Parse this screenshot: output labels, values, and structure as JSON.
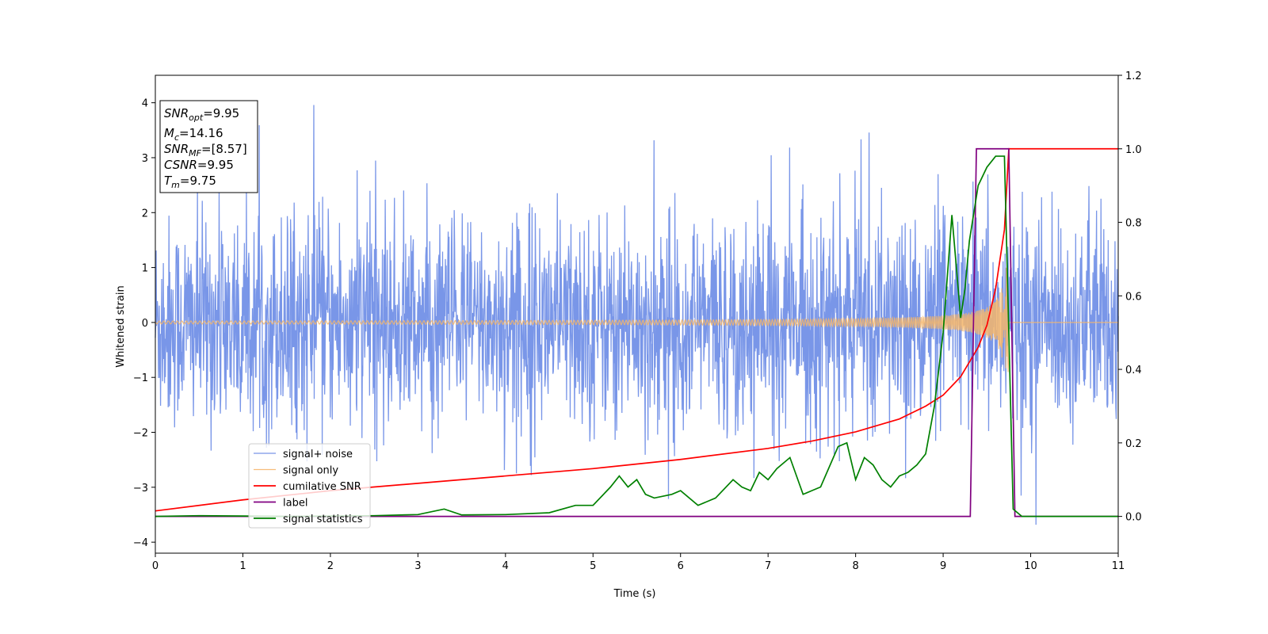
{
  "chart_data": {
    "type": "line",
    "xlabel": "Time (s)",
    "ylabel": "Whitened strain",
    "xlim": [
      0,
      11
    ],
    "ylim_left": [
      -4.2,
      4.5
    ],
    "ylim_right": [
      -0.1,
      1.2
    ],
    "x_ticks": [
      "0",
      "1",
      "2",
      "3",
      "4",
      "5",
      "6",
      "7",
      "8",
      "9",
      "10",
      "11"
    ],
    "y_ticks_left": [
      "−4",
      "−3",
      "−2",
      "−1",
      "0",
      "1",
      "2",
      "3",
      "4"
    ],
    "y_tick_values_left": [
      -4,
      -3,
      -2,
      -1,
      0,
      1,
      2,
      3,
      4
    ],
    "y_ticks_right": [
      "0.0",
      "0.2",
      "0.4",
      "0.6",
      "0.8",
      "1.0",
      "1.2"
    ],
    "y_tick_values_right": [
      0.0,
      0.2,
      0.4,
      0.6,
      0.8,
      1.0,
      1.2
    ],
    "grid": false,
    "legend_position": "lower-left",
    "info_box": {
      "lines": [
        {
          "main": "SNR",
          "sub": "opt",
          "rest": "=9.95"
        },
        {
          "main": "M",
          "sub": "c",
          "rest": "=14.16"
        },
        {
          "main": "SNR",
          "sub": "MF",
          "rest": "=[8.57]"
        },
        {
          "main": "CSNR",
          "sub": "",
          "rest": "=9.95"
        },
        {
          "main": "T",
          "sub": "m",
          "rest": "=9.75"
        }
      ]
    },
    "series": [
      {
        "name": "signal+ noise",
        "axis": "left",
        "color": "#6a8be6",
        "description_kind": "noise",
        "noise_sigma": 0.95,
        "x_range": [
          0,
          11
        ]
      },
      {
        "name": "signal only",
        "axis": "left",
        "color": "#f5b66b",
        "description_kind": "chirp",
        "merger_time": 9.75,
        "peak_amplitude": 1.0,
        "x_range": [
          0,
          11
        ]
      },
      {
        "name": "cumilative SNR",
        "axis": "right",
        "color": "#ff0000",
        "x": [
          0,
          1,
          2,
          3,
          4,
          5,
          6,
          7,
          7.5,
          8,
          8.5,
          8.8,
          9.0,
          9.2,
          9.4,
          9.5,
          9.6,
          9.7,
          9.75,
          11
        ],
        "y": [
          0.015,
          0.045,
          0.07,
          0.09,
          0.11,
          0.13,
          0.155,
          0.185,
          0.205,
          0.23,
          0.265,
          0.3,
          0.33,
          0.38,
          0.46,
          0.52,
          0.62,
          0.78,
          1.0,
          1.0
        ]
      },
      {
        "name": "label",
        "axis": "right",
        "color": "#800080",
        "x": [
          0,
          9.31,
          9.38,
          9.75,
          9.82,
          11
        ],
        "y": [
          0,
          0,
          1,
          1,
          0,
          0
        ]
      },
      {
        "name": "signal statistics",
        "axis": "right",
        "color": "#008000",
        "x": [
          0,
          0.5,
          1,
          1.5,
          2,
          2.5,
          3,
          3.3,
          3.5,
          4,
          4.5,
          4.8,
          5,
          5.2,
          5.3,
          5.4,
          5.5,
          5.6,
          5.7,
          5.9,
          6,
          6.2,
          6.4,
          6.6,
          6.7,
          6.8,
          6.9,
          7.0,
          7.1,
          7.25,
          7.4,
          7.5,
          7.6,
          7.8,
          7.9,
          8.0,
          8.1,
          8.2,
          8.3,
          8.4,
          8.5,
          8.6,
          8.7,
          8.8,
          8.9,
          9.0,
          9.1,
          9.2,
          9.25,
          9.3,
          9.4,
          9.5,
          9.6,
          9.7,
          9.8,
          9.9,
          10,
          11
        ],
        "y": [
          0.0,
          0.002,
          0.001,
          0.0,
          0.001,
          0.002,
          0.005,
          0.02,
          0.004,
          0.005,
          0.01,
          0.03,
          0.03,
          0.08,
          0.11,
          0.08,
          0.1,
          0.06,
          0.05,
          0.06,
          0.07,
          0.03,
          0.05,
          0.1,
          0.08,
          0.07,
          0.12,
          0.1,
          0.13,
          0.16,
          0.06,
          0.07,
          0.08,
          0.19,
          0.2,
          0.1,
          0.16,
          0.14,
          0.1,
          0.08,
          0.11,
          0.12,
          0.14,
          0.17,
          0.3,
          0.5,
          0.82,
          0.54,
          0.62,
          0.75,
          0.9,
          0.95,
          0.98,
          0.98,
          0.02,
          0.0,
          0.0,
          0.0
        ]
      }
    ]
  }
}
